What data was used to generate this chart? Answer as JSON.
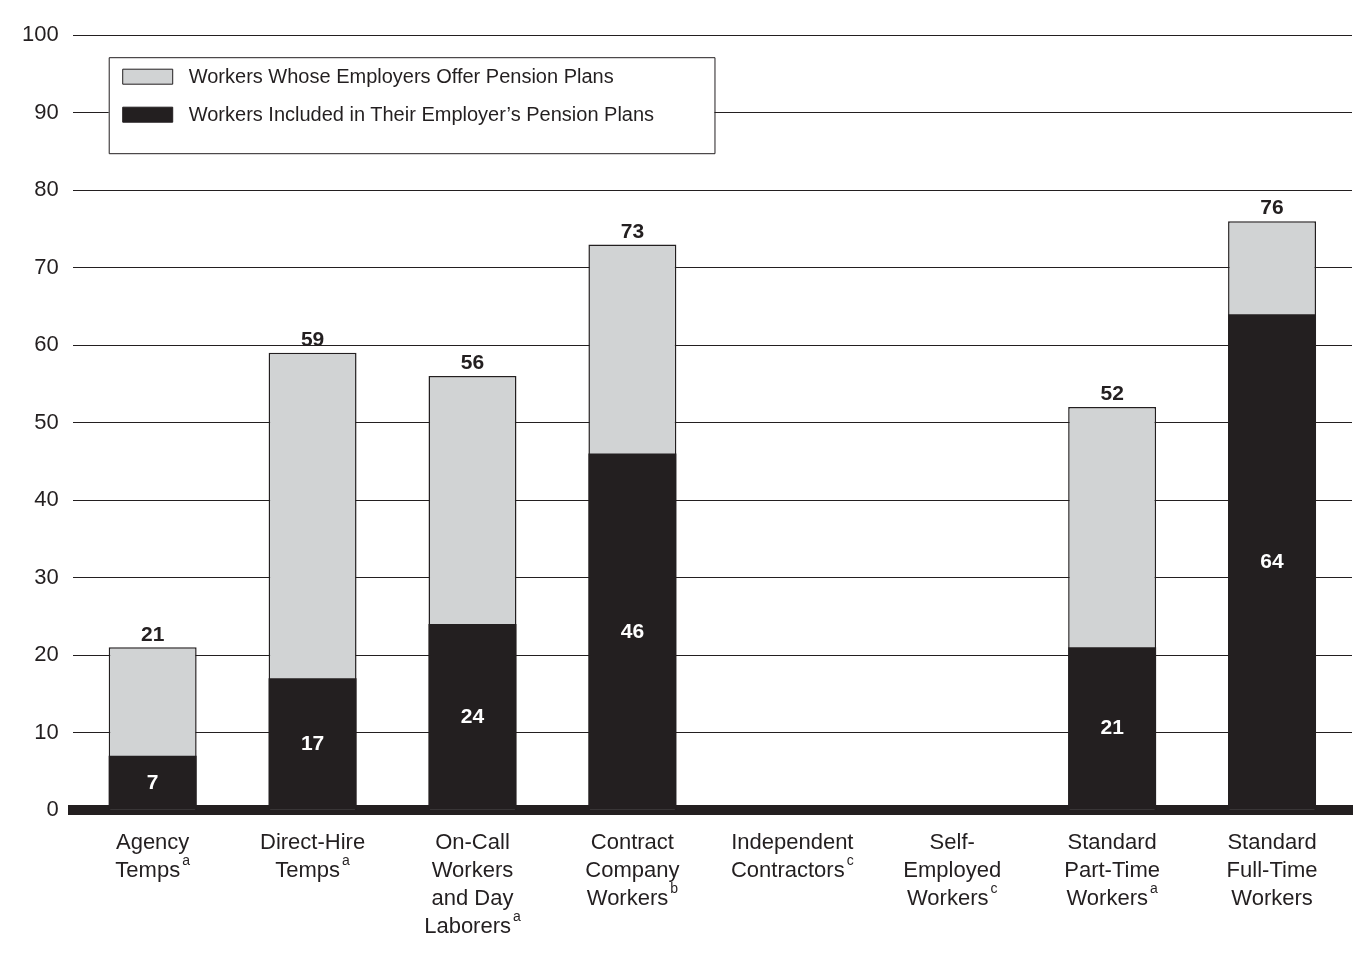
{
  "chart_data": {
    "type": "bar",
    "categories": [
      "Agency Temps$^{a}$",
      "Direct-Hire Temps$^{a}$",
      "On-Call Workers and Day Laborers$^{a}$",
      "Contract Company Workers$^{b}$",
      "Independent Contractors$^{c}$",
      "Self-Employed Workers$^{c}$",
      "Standard Part-Time Workers$^{a}$",
      "Standard Full-Time Workers"
    ],
    "series": [
      {
        "name": "Workers Whose Employers Offer Pension Plans",
        "color": "#d1d3d4",
        "values": [
          21,
          59,
          56,
          73,
          null,
          null,
          52,
          76
        ]
      },
      {
        "name": "Workers Included in Their Employer’s Pension Plans",
        "color": "#231f20",
        "values": [
          7,
          17,
          24,
          46,
          null,
          null,
          21,
          64
        ]
      }
    ],
    "ylim": [
      0,
      100
    ],
    "yticks": [
      0,
      10,
      20,
      30,
      40,
      50,
      60,
      70,
      80,
      90,
      100
    ],
    "grid": "y",
    "legend": "top left",
    "data_labels": true
  }
}
